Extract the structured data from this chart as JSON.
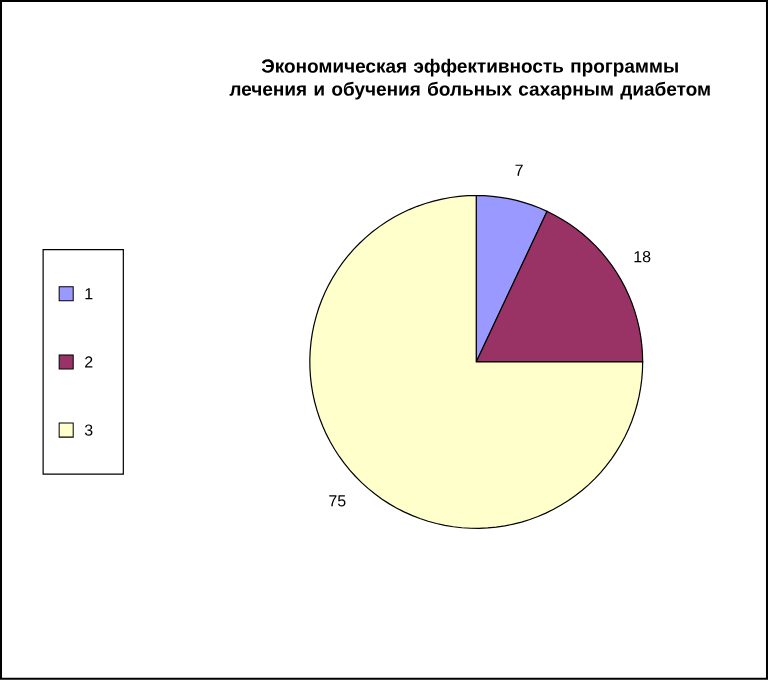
{
  "chart_data": {
    "type": "pie",
    "title": "Экономическая эффективность программы лечения и обучения больных сахарным диабетом",
    "categories": [
      "1",
      "2",
      "3"
    ],
    "values": [
      7,
      18,
      75
    ],
    "colors": [
      "#9999ff",
      "#993366",
      "#ffffcc"
    ],
    "data_labels": true,
    "legend": "left"
  }
}
